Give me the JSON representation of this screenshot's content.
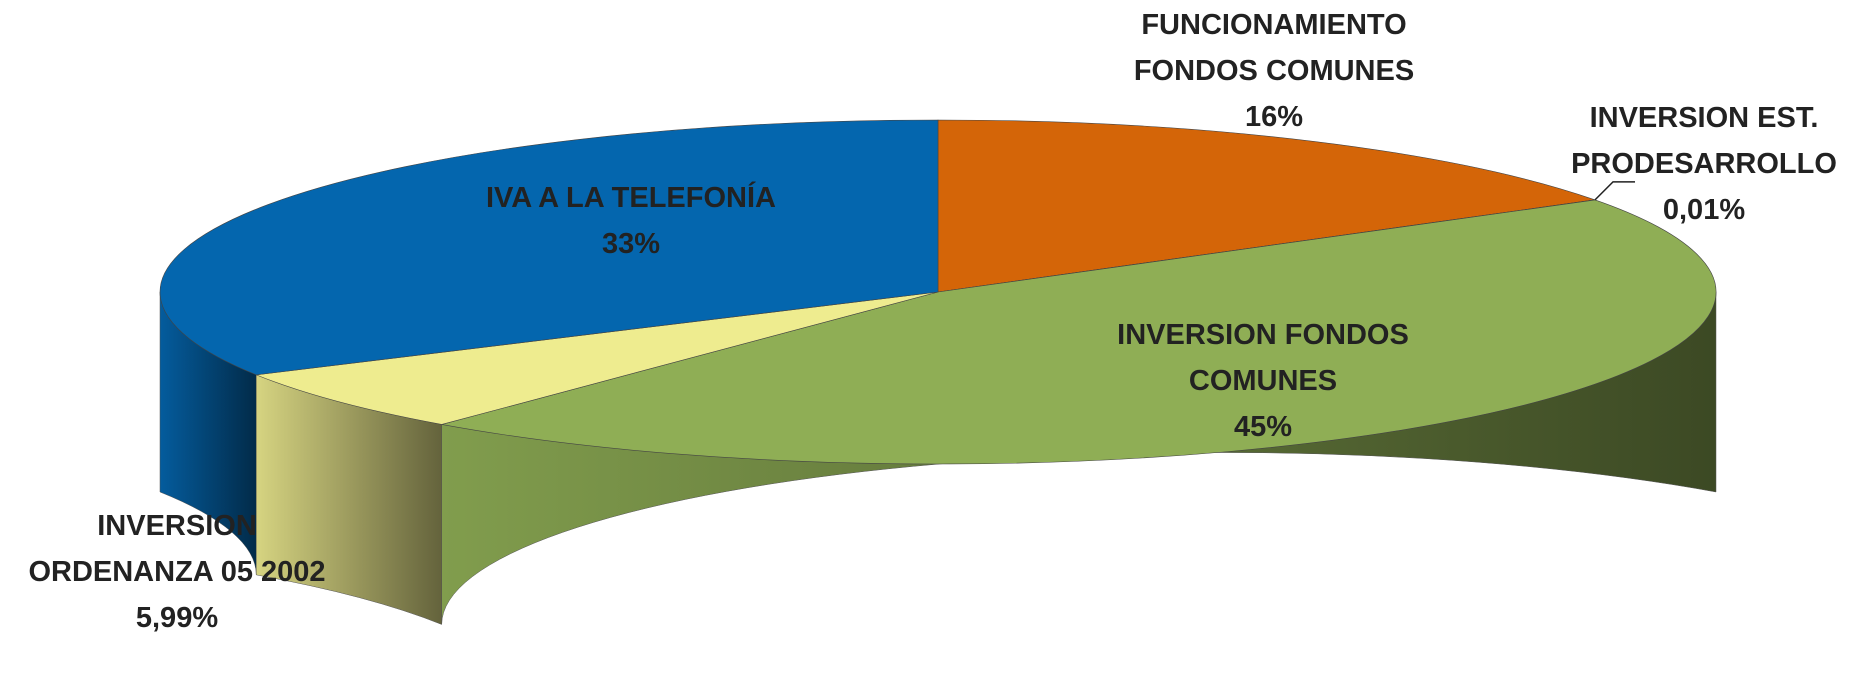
{
  "chart_data": {
    "type": "pie",
    "categories": [
      "FUNCIONAMIENTO FONDOS COMUNES",
      "INVERSION EST. PRODESARROLLO",
      "INVERSION FONDOS COMUNES",
      "INVERSION ORDENANZA 05 2002",
      "IVA A LA TELEFONÍA"
    ],
    "values": [
      16,
      0.01,
      45,
      5.99,
      33
    ],
    "value_labels": [
      "16%",
      "0,01%",
      "45%",
      "5,99%",
      "33%"
    ],
    "colors": [
      "#d46508",
      "#1f3d63",
      "#8fae55",
      "#eeec8f",
      "#0466ae"
    ]
  }
}
